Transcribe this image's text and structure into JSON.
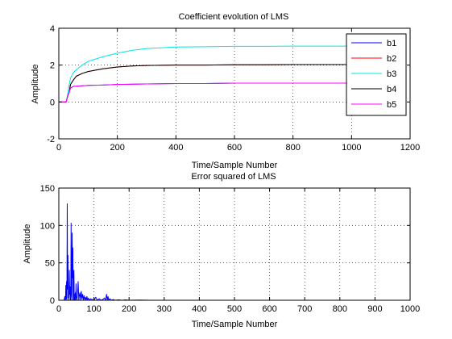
{
  "chart_data": [
    {
      "type": "line",
      "title": "Coefficient evolution of LMS",
      "xlabel": "Time/Sample Number",
      "ylabel": "Amplitude",
      "xlim": [
        0,
        1200
      ],
      "ylim": [
        -2,
        4
      ],
      "xticks": [
        "0",
        "200",
        "400",
        "600",
        "800",
        "1000",
        "1200"
      ],
      "yticks": [
        "-2",
        "0",
        "2",
        "4"
      ],
      "grid": true,
      "legend_placement": "top-right",
      "series": [
        {
          "name": "b1",
          "color": "#0000ff",
          "x": [
            0,
            25,
            30,
            35,
            40,
            50,
            60,
            80,
            100,
            150,
            200,
            300,
            400,
            500,
            600,
            700,
            800,
            900,
            1000
          ],
          "y": [
            0,
            0,
            0.3,
            0.5,
            0.75,
            0.85,
            0.85,
            0.88,
            0.9,
            0.92,
            0.95,
            0.98,
            1.0,
            1.0,
            1.02,
            1.02,
            1.02,
            1.02,
            1.02
          ]
        },
        {
          "name": "b2",
          "color": "#ff0000",
          "x": [
            0,
            25,
            30,
            35,
            40,
            50,
            60,
            80,
            100,
            150,
            200,
            250,
            300,
            400,
            500,
            600,
            700,
            800,
            900,
            1000
          ],
          "y": [
            0,
            0,
            0.3,
            0.5,
            0.95,
            1.2,
            1.4,
            1.55,
            1.65,
            1.8,
            1.9,
            1.95,
            1.98,
            2.0,
            2.0,
            2.02,
            2.02,
            2.03,
            2.03,
            2.03
          ]
        },
        {
          "name": "b3",
          "color": "#00e5e5",
          "x": [
            0,
            25,
            30,
            35,
            40,
            50,
            60,
            80,
            100,
            150,
            200,
            250,
            300,
            400,
            500,
            600,
            700,
            800,
            900,
            1000
          ],
          "y": [
            0,
            0,
            0.4,
            0.9,
            1.3,
            1.6,
            1.75,
            2.0,
            2.2,
            2.45,
            2.65,
            2.8,
            2.9,
            2.98,
            3.0,
            3.02,
            3.02,
            3.03,
            3.03,
            3.03
          ]
        },
        {
          "name": "b4",
          "color": "#000000",
          "x": [
            0,
            25,
            30,
            35,
            40,
            50,
            60,
            80,
            100,
            150,
            200,
            250,
            300,
            400,
            500,
            600,
            700,
            800,
            900,
            1000
          ],
          "y": [
            0,
            0,
            0.3,
            0.5,
            0.95,
            1.2,
            1.4,
            1.55,
            1.65,
            1.8,
            1.9,
            1.95,
            1.98,
            2.0,
            2.0,
            2.02,
            2.02,
            2.03,
            2.03,
            2.03
          ]
        },
        {
          "name": "b5",
          "color": "#ff00ff",
          "x": [
            0,
            25,
            30,
            35,
            40,
            50,
            60,
            80,
            100,
            150,
            200,
            300,
            400,
            500,
            600,
            700,
            800,
            900,
            1000
          ],
          "y": [
            0,
            0,
            0.3,
            0.5,
            0.75,
            0.85,
            0.85,
            0.88,
            0.9,
            0.92,
            0.95,
            0.98,
            1.0,
            1.0,
            1.02,
            1.02,
            1.02,
            1.02,
            1.02
          ]
        }
      ]
    },
    {
      "type": "line",
      "title": "Error squared of LMS",
      "xlabel": "Time/Sample Number",
      "ylabel": "Amplitude",
      "xlim": [
        0,
        1000
      ],
      "ylim": [
        0,
        150
      ],
      "xticks": [
        "0",
        "100",
        "200",
        "300",
        "400",
        "500",
        "600",
        "700",
        "800",
        "900",
        "1000"
      ],
      "yticks": [
        "0",
        "50",
        "100",
        "150"
      ],
      "grid": true,
      "series": [
        {
          "color": "#0000ff",
          "x": [
            0,
            15,
            17,
            19,
            20,
            21,
            22,
            23,
            24,
            25,
            26,
            27,
            28,
            29,
            30,
            31,
            32,
            33,
            34,
            35,
            36,
            37,
            38,
            39,
            40,
            41,
            42,
            43,
            44,
            45,
            46,
            47,
            48,
            49,
            50,
            52,
            54,
            55,
            57,
            58,
            60,
            62,
            64,
            66,
            68,
            70,
            72,
            74,
            76,
            78,
            80,
            82,
            84,
            86,
            88,
            90,
            95,
            100,
            105,
            110,
            115,
            120,
            125,
            130,
            133,
            136,
            138,
            140,
            142,
            145,
            150,
            155,
            160,
            170,
            180,
            190,
            200,
            230,
            260,
            300,
            400,
            500,
            600,
            700,
            800,
            900,
            1000
          ],
          "y": [
            0,
            0,
            5,
            0,
            20,
            2,
            25,
            0,
            129,
            15,
            60,
            3,
            10,
            0,
            40,
            8,
            18,
            0,
            5,
            103,
            12,
            0,
            90,
            30,
            70,
            0,
            3,
            40,
            0,
            8,
            0,
            10,
            0,
            22,
            5,
            0,
            15,
            25,
            0,
            5,
            10,
            0,
            12,
            2,
            8,
            0,
            6,
            1,
            4,
            0,
            5,
            0,
            3,
            1,
            0,
            2,
            1,
            0,
            4,
            0,
            2,
            0,
            1,
            3,
            0,
            8,
            0,
            5,
            0,
            2,
            0,
            1,
            0,
            0.5,
            0,
            0.5,
            0,
            0.3,
            0,
            0,
            0,
            0,
            0,
            0,
            0,
            0,
            0
          ]
        }
      ]
    }
  ]
}
